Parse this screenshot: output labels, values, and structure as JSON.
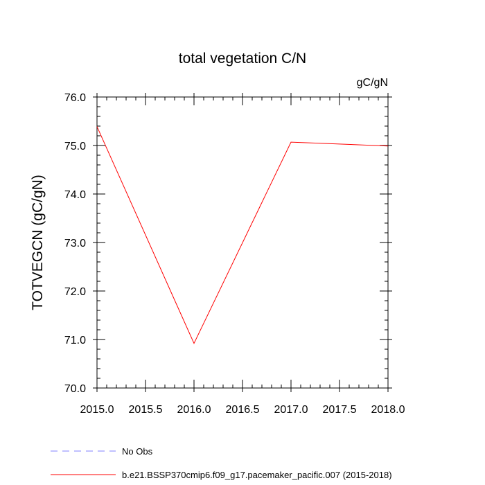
{
  "chart_data": {
    "type": "line",
    "title": "total vegetation C/N",
    "units_label": "gC/gN",
    "ylabel": "TOTVEGCN  (gC/gN)",
    "xlabel": "",
    "xlim": [
      2015.0,
      2018.0
    ],
    "ylim": [
      70.0,
      76.0
    ],
    "xticks": [
      2015.0,
      2015.5,
      2016.0,
      2016.5,
      2017.0,
      2017.5,
      2018.0
    ],
    "xtick_labels": [
      "2015.0",
      "2015.5",
      "2016.0",
      "2016.5",
      "2017.0",
      "2017.5",
      "2018.0"
    ],
    "yticks": [
      70.0,
      71.0,
      72.0,
      73.0,
      74.0,
      75.0,
      76.0
    ],
    "ytick_labels": [
      "70.0",
      "71.0",
      "72.0",
      "73.0",
      "74.0",
      "75.0",
      "76.0"
    ],
    "grid": false,
    "legend_position": "bottom",
    "series": [
      {
        "name": "b.e21.BSSP370cmip6.f09_g17.pacemaker_pacific.007 (2015-2018)",
        "color": "#ff0000",
        "style": "solid",
        "x": [
          2015.0,
          2016.0,
          2017.0,
          2018.0
        ],
        "y": [
          75.39,
          70.92,
          75.07,
          74.99
        ]
      }
    ],
    "legend": [
      {
        "label": "No Obs",
        "color": "#8080ff",
        "style": "dashed"
      },
      {
        "label": "b.e21.BSSP370cmip6.f09_g17.pacemaker_pacific.007 (2015-2018)",
        "color": "#ff0000",
        "style": "solid"
      }
    ]
  }
}
